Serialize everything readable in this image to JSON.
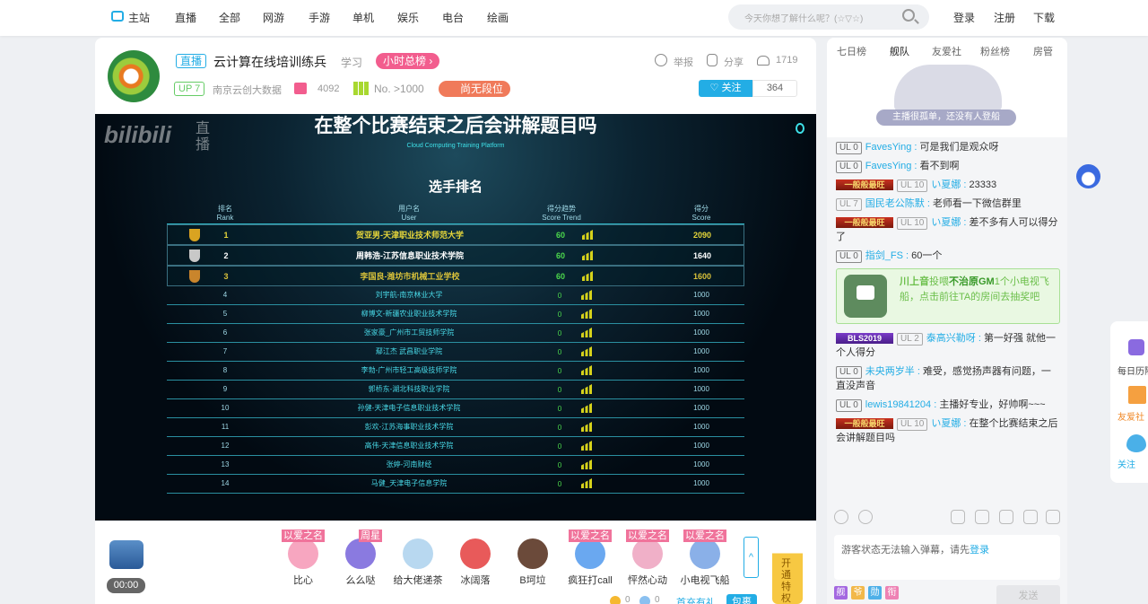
{
  "nav": {
    "items": [
      "主站",
      "直播",
      "全部",
      "网游",
      "手游",
      "单机",
      "娱乐",
      "电台",
      "绘画"
    ],
    "search_placeholder": "今天你想了解什么呢？(☆▽☆)",
    "login": "登录",
    "register": "注册",
    "download": "下载"
  },
  "room": {
    "live_tag": "直播",
    "title": "云计算在线培训练兵",
    "category": "学习",
    "hour_rank": "小时总榜 ›",
    "up_level": "UP 7",
    "streamer": "南京云创大数据",
    "gift_count": "4092",
    "rank": "No. >1000",
    "tier": "尚无段位",
    "report": "举报",
    "share": "分享",
    "viewers": "1719",
    "follow": "♡ 关注",
    "followers": "364"
  },
  "video": {
    "danmaku_title": "在整个比赛结束之后会讲解题目吗",
    "platform": "Cloud Computing Training Platform",
    "watermark": "bilibili",
    "watermark_sub": "直播",
    "ranking_title": "选手排名",
    "headers": {
      "rank": [
        "排名",
        "Rank"
      ],
      "user": [
        "用户名",
        "User"
      ],
      "trend": [
        "得分趋势",
        "Score Trend"
      ],
      "score": [
        "得分",
        "Score"
      ]
    },
    "rows": [
      {
        "rank": "1",
        "user": "贺亚男-天津职业技术师范大学",
        "trend": "60",
        "score": "2090",
        "color": "#e6d63a",
        "cup": "#d9a321"
      },
      {
        "rank": "2",
        "user": "周韩浩-江苏信息职业技术学院",
        "trend": "60",
        "score": "1640",
        "color": "#ffffff",
        "cup": "#c8c8c8"
      },
      {
        "rank": "3",
        "user": "李国良-潍坊市机械工业学校",
        "trend": "60",
        "score": "1600",
        "color": "#d9c23a",
        "cup": "#c9852c"
      },
      {
        "rank": "4",
        "user": "刘宇航-南京林业大学",
        "trend": "0",
        "score": "1000"
      },
      {
        "rank": "5",
        "user": "柳博文-新疆农业职业技术学院",
        "trend": "0",
        "score": "1000"
      },
      {
        "rank": "6",
        "user": "张家豪_广州市工贸技师学院",
        "trend": "0",
        "score": "1000"
      },
      {
        "rank": "7",
        "user": "鄢江杰 武昌职业学院",
        "trend": "0",
        "score": "1000"
      },
      {
        "rank": "8",
        "user": "李勃-广州市轻工高级技师学院",
        "trend": "0",
        "score": "1000"
      },
      {
        "rank": "9",
        "user": "郭桥东-湖北科技职业学院",
        "trend": "0",
        "score": "1000"
      },
      {
        "rank": "10",
        "user": "孙健-天津电子信息职业技术学院",
        "trend": "0",
        "score": "1000"
      },
      {
        "rank": "11",
        "user": "彭欢-江苏海事职业技术学院",
        "trend": "0",
        "score": "1000"
      },
      {
        "rank": "12",
        "user": "高伟-天津信息职业技术学院",
        "trend": "0",
        "score": "1000"
      },
      {
        "rank": "13",
        "user": "张婷-河南财经",
        "trend": "0",
        "score": "1000"
      },
      {
        "rank": "14",
        "user": "马健_天津电子信息学院",
        "trend": "0",
        "score": "1000"
      }
    ]
  },
  "gifts": {
    "timer": "00:00",
    "items": [
      {
        "label": "比心",
        "badge": "以爱之名",
        "color": "#f7a6c0"
      },
      {
        "label": "么么哒",
        "badge": "周星",
        "color": "#8a7ae0"
      },
      {
        "label": "给大佬递茶",
        "badge": "",
        "color": "#b8d8f0"
      },
      {
        "label": "冰阔落",
        "badge": "",
        "color": "#e85a5a"
      },
      {
        "label": "B坷垃",
        "badge": "",
        "color": "#6b4a3a"
      },
      {
        "label": "疯狂打call",
        "badge": "以爱之名",
        "color": "#6aa8f0"
      },
      {
        "label": "怦然心动",
        "badge": "以爱之名",
        "color": "#f0b0c8"
      },
      {
        "label": "小电视飞船",
        "badge": "以爱之名",
        "color": "#8ab0e8"
      }
    ],
    "gold": "0",
    "silver": "0",
    "first_charge": "首充有礼",
    "package": "包裹",
    "privilege": "开通特权"
  },
  "panel": {
    "tabs": [
      "七日榜",
      "舰队",
      "友爱社",
      "粉丝榜",
      "房管"
    ],
    "active_tab": 1,
    "guard_empty": "主播很孤单，还没有人登船",
    "messages": [
      {
        "medal": "",
        "ul": "UL 0",
        "user": "FavesYing",
        "text": "可是我们是观众呀"
      },
      {
        "medal": "",
        "ul": "UL 0",
        "user": "FavesYing",
        "text": "看不到啊"
      },
      {
        "medal": "一般般最旺",
        "ul": "UL 10",
        "user": "い夏娜",
        "text": "23333"
      },
      {
        "medal": "",
        "ul": "UL 7",
        "user": "国民老公陈默",
        "text": "老师看一下微信群里"
      },
      {
        "medal": "一般般最旺",
        "ul": "UL 10",
        "user": "い夏娜",
        "text": "差不多有人可以得分了"
      },
      {
        "medal": "",
        "ul": "UL 0",
        "user": "指剑_FS",
        "text": "60一个"
      }
    ],
    "notice": {
      "user": "川上音",
      "mid": "投喂",
      "target": "不治原GM",
      "text": "1个小电视飞船，点击前往TA的房间去抽奖吧"
    },
    "messages2": [
      {
        "medal": "BLS2019",
        "ul": "UL 2",
        "user": "泰高兴勒呀",
        "text": "第一好强 就他一个人得分"
      },
      {
        "medal": "",
        "ul": "UL 0",
        "user": "未央两岁半",
        "text": "难受，感觉扬声器有问题，一直没声音"
      },
      {
        "medal": "",
        "ul": "UL 0",
        "user": "lewis19841204",
        "text": "主播好专业，好帅啊~~~"
      },
      {
        "medal": "一般般最旺",
        "ul": "UL 10",
        "user": "い夏娜",
        "text": "在整个比赛结束之后会讲解题目吗"
      }
    ],
    "input_text": "游客状态无法输入弹幕，请先",
    "input_login": "登录",
    "badges": [
      "舰",
      "爷",
      "勋",
      "衔"
    ],
    "send": "发送"
  },
  "side": {
    "history": "每日历险",
    "club": "友爱社",
    "follow": "关注"
  }
}
